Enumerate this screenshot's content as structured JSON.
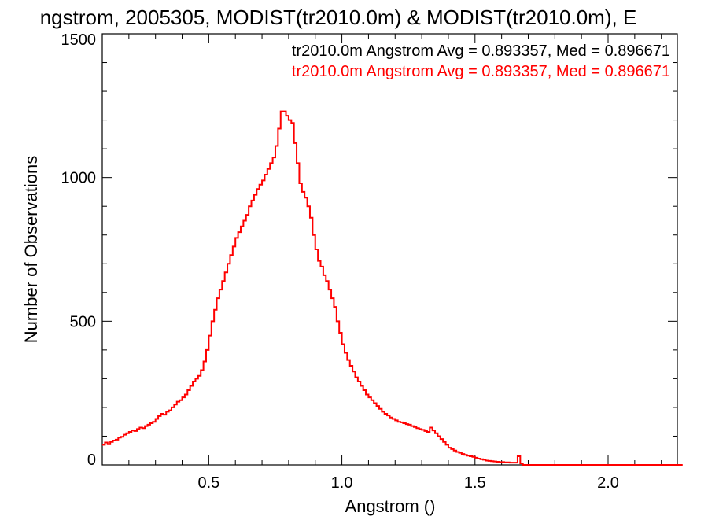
{
  "chart_data": {
    "type": "histogram",
    "title": "ngstrom, 2005305, MODIST(tr2010.0m) & MODIST(tr2010.0m), E",
    "xlabel": "Angstrom ()",
    "ylabel": "Number of Observations",
    "xlim": [
      0.1,
      2.26
    ],
    "ylim": [
      0,
      1500
    ],
    "xticks": [
      0.5,
      1.0,
      1.5,
      2.0
    ],
    "xtick_labels": [
      "0.5",
      "1.0",
      "1.5",
      "2.0"
    ],
    "yticks": [
      0,
      500,
      1000,
      1500
    ],
    "ytick_labels": [
      "0",
      "500",
      "1000",
      "1500"
    ],
    "grid": false,
    "legend": [
      {
        "text": "tr2010.0m Angstrom Avg = 0.893357, Med = 0.896671",
        "color": "#000000"
      },
      {
        "text": "tr2010.0m Angstrom Avg = 0.893357, Med = 0.896671",
        "color": "#ff0000"
      }
    ],
    "legend_position": "top-right",
    "series": [
      {
        "color": "#ff0000",
        "bin_width": 0.01,
        "x_start": 0.1,
        "values": [
          70,
          78,
          72,
          80,
          85,
          88,
          95,
          98,
          105,
          110,
          115,
          120,
          118,
          125,
          130,
          128,
          135,
          140,
          145,
          150,
          160,
          170,
          178,
          175,
          185,
          190,
          200,
          210,
          220,
          225,
          235,
          245,
          260,
          275,
          290,
          300,
          310,
          330,
          360,
          400,
          450,
          500,
          540,
          580,
          610,
          640,
          670,
          700,
          730,
          760,
          790,
          810,
          830,
          850,
          870,
          900,
          920,
          940,
          960,
          975,
          990,
          1010,
          1030,
          1050,
          1070,
          1110,
          1170,
          1230,
          1230,
          1215,
          1200,
          1190,
          1120,
          1050,
          980,
          950,
          930,
          900,
          860,
          800,
          750,
          710,
          690,
          660,
          640,
          610,
          580,
          550,
          500,
          460,
          420,
          390,
          365,
          345,
          325,
          305,
          290,
          275,
          260,
          245,
          235,
          225,
          215,
          205,
          195,
          185,
          178,
          172,
          165,
          160,
          155,
          150,
          148,
          145,
          142,
          140,
          135,
          132,
          128,
          125,
          122,
          118,
          115,
          130,
          120,
          110,
          100,
          90,
          80,
          70,
          60,
          55,
          50,
          45,
          42,
          38,
          35,
          32,
          30,
          28,
          25,
          22,
          20,
          18,
          15,
          14,
          13,
          12,
          11,
          10,
          10,
          9,
          9,
          8,
          8,
          8,
          30,
          5,
          0,
          0,
          0,
          0,
          0,
          0,
          0,
          0,
          0,
          0,
          0,
          0,
          0,
          0,
          0,
          0,
          0,
          0,
          0,
          0,
          0,
          0,
          0,
          0,
          0,
          0,
          0,
          0,
          0,
          0,
          0,
          0,
          0,
          0,
          0,
          0,
          0,
          0,
          0,
          0,
          0,
          0,
          0,
          0,
          0,
          0,
          0,
          0,
          0,
          0,
          0,
          0,
          0,
          0,
          0,
          0,
          0,
          0,
          0,
          0
        ]
      }
    ]
  }
}
